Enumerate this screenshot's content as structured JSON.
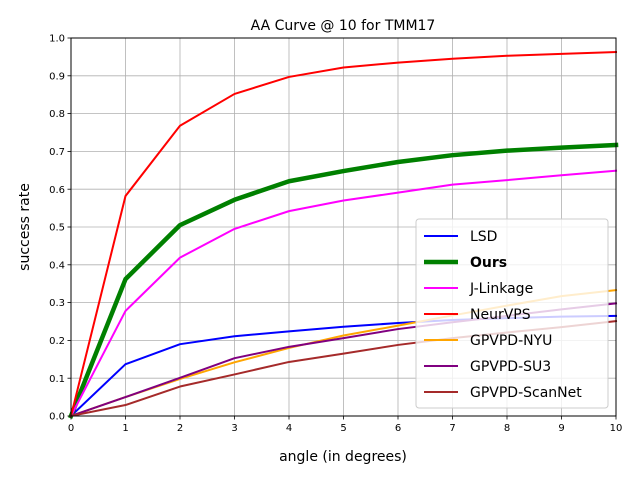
{
  "chart_data": {
    "type": "line",
    "title": "AA Curve @ 10 for TMM17",
    "xlabel": "angle (in degrees)",
    "ylabel": "success rate",
    "xlim": [
      0,
      10
    ],
    "ylim": [
      0,
      1
    ],
    "grid": true,
    "legend_position": "lower-right",
    "x": [
      0,
      1,
      2,
      3,
      4,
      5,
      6,
      7,
      8,
      9,
      10
    ],
    "xticks": [
      "0",
      "1",
      "2",
      "3",
      "4",
      "5",
      "6",
      "7",
      "8",
      "9",
      "10"
    ],
    "yticks": [
      "0.0",
      "0.1",
      "0.2",
      "0.3",
      "0.4",
      "0.5",
      "0.6",
      "0.7",
      "0.8",
      "0.9",
      "1.0"
    ],
    "series": [
      {
        "name": "LSD",
        "color": "#0000ff",
        "bold": false,
        "emphasis": false,
        "values": [
          0.0,
          0.137,
          0.19,
          0.211,
          0.224,
          0.236,
          0.246,
          0.254,
          0.259,
          0.263,
          0.265
        ]
      },
      {
        "name": "Ours",
        "color": "#008000",
        "bold": true,
        "emphasis": true,
        "values": [
          0.0,
          0.362,
          0.505,
          0.572,
          0.621,
          0.648,
          0.672,
          0.69,
          0.702,
          0.71,
          0.717
        ]
      },
      {
        "name": "J-Linkage",
        "color": "#ff00ff",
        "bold": false,
        "emphasis": false,
        "values": [
          0.0,
          0.278,
          0.419,
          0.495,
          0.542,
          0.57,
          0.591,
          0.612,
          0.624,
          0.637,
          0.649
        ]
      },
      {
        "name": "NeurVPS",
        "color": "#ff0000",
        "bold": false,
        "emphasis": false,
        "values": [
          0.0,
          0.582,
          0.768,
          0.852,
          0.897,
          0.922,
          0.935,
          0.945,
          0.953,
          0.958,
          0.963
        ]
      },
      {
        "name": "GPVPD-NYU",
        "color": "#ffa500",
        "bold": false,
        "emphasis": false,
        "values": [
          0.0,
          0.05,
          0.098,
          0.142,
          0.18,
          0.213,
          0.239,
          0.266,
          0.292,
          0.317,
          0.333
        ]
      },
      {
        "name": "GPVPD-SU3",
        "color": "#800080",
        "bold": false,
        "emphasis": false,
        "values": [
          0.0,
          0.05,
          0.101,
          0.153,
          0.183,
          0.206,
          0.23,
          0.248,
          0.265,
          0.282,
          0.298
        ]
      },
      {
        "name": "GPVPD-ScanNet",
        "color": "#a52a2a",
        "bold": false,
        "emphasis": false,
        "values": [
          0.0,
          0.029,
          0.078,
          0.11,
          0.143,
          0.165,
          0.188,
          0.206,
          0.221,
          0.235,
          0.251
        ]
      }
    ]
  }
}
